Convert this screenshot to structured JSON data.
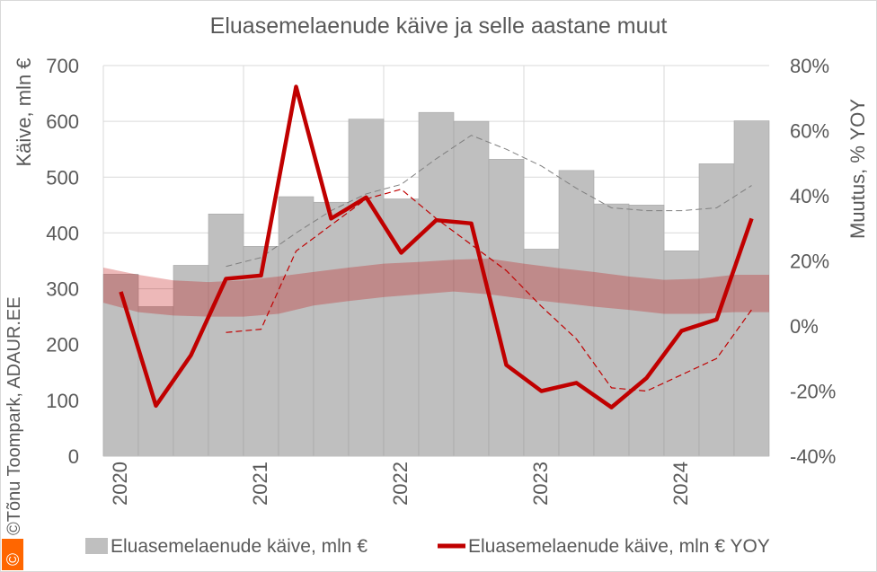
{
  "chart_data": {
    "type": "bar+line",
    "title": "Eluasemelaenude käive ja selle aastane muut",
    "ylabel_left": "Käive, mln €",
    "ylabel_right": "Muutus, % YOY",
    "ylim_left": [
      0,
      700
    ],
    "yticks_left": [
      "0",
      "100",
      "200",
      "300",
      "400",
      "500",
      "600",
      "700"
    ],
    "ylim_right": [
      -40,
      80
    ],
    "yticks_right": [
      "-40%",
      "-20%",
      "0%",
      "20%",
      "40%",
      "60%",
      "80%"
    ],
    "x_labels": [
      "2020",
      "2021",
      "2022",
      "2023",
      "2024"
    ],
    "quarters": [
      "2020Q1",
      "2020Q2",
      "2020Q3",
      "2020Q4",
      "2021Q1",
      "2021Q2",
      "2021Q3",
      "2021Q4",
      "2022Q1",
      "2022Q2",
      "2022Q3",
      "2022Q4",
      "2023Q1",
      "2023Q2",
      "2023Q3",
      "2023Q4",
      "2024Q1",
      "2024Q2",
      "2024Q3"
    ],
    "series": [
      {
        "name": "Eluasemelaenude käive, mln €",
        "kind": "bar",
        "color": "#bfbfbf",
        "axis": "left",
        "values": [
          326,
          268,
          342,
          434,
          376,
          465,
          455,
          604,
          461,
          616,
          600,
          532,
          371,
          512,
          452,
          450,
          368,
          524,
          601
        ]
      },
      {
        "name": "Eluasemelaenude käive, mln € YOY",
        "kind": "line",
        "color": "#c00000",
        "axis": "right",
        "values": [
          10.5,
          -24.5,
          -9,
          14.5,
          15.5,
          73.5,
          33,
          39.5,
          22.5,
          32.5,
          31.5,
          -12,
          -20,
          -17.5,
          -25,
          -16,
          -1.5,
          2,
          33
        ]
      }
    ],
    "trend_bar": {
      "color": "#7f7f7f",
      "axis": "left",
      "values": [
        null,
        null,
        null,
        340,
        356,
        400,
        440,
        470,
        487,
        533,
        575,
        550,
        520,
        480,
        445,
        440,
        440,
        445,
        485
      ]
    },
    "trend_yoy": {
      "color": "#c00000",
      "axis": "right",
      "values": [
        null,
        null,
        null,
        -2,
        -1,
        23,
        31,
        39,
        42,
        33,
        25,
        17,
        6,
        -4,
        -19,
        -20,
        -15,
        -10,
        5
      ]
    },
    "band": {
      "color": "#c00000",
      "axis": "left",
      "lower": [
        275,
        258,
        252,
        250,
        250,
        255,
        270,
        278,
        285,
        290,
        295,
        290,
        282,
        275,
        268,
        262,
        255,
        255,
        258
      ],
      "upper": [
        338,
        325,
        315,
        312,
        315,
        322,
        330,
        338,
        345,
        348,
        352,
        354,
        345,
        337,
        330,
        322,
        316,
        318,
        325
      ]
    },
    "legend_position": "bottom",
    "grid": true
  },
  "watermark": "©Tõnu Toompark, ADAUR.EE"
}
